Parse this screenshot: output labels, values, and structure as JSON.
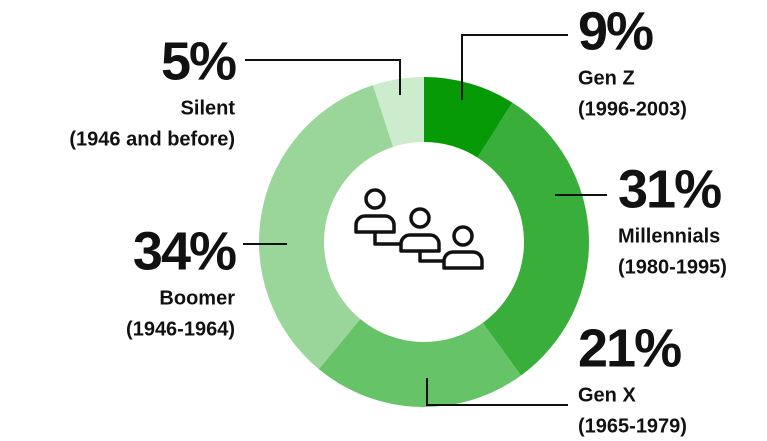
{
  "chart_data": {
    "type": "donut",
    "categories": [
      "Gen Z",
      "Millennials",
      "Gen X",
      "Boomer",
      "Silent"
    ],
    "periods": [
      "(1996-2003)",
      "(1980-1995)",
      "(1965-1979)",
      "(1946-1964)",
      "(1946 and before)"
    ],
    "values": [
      9,
      31,
      21,
      34,
      5
    ],
    "value_labels": [
      "9%",
      "31%",
      "21%",
      "34%",
      "5%"
    ],
    "colors": [
      "#079a07",
      "#3aae3a",
      "#67c367",
      "#9ad69a",
      "#cdebcd"
    ]
  }
}
